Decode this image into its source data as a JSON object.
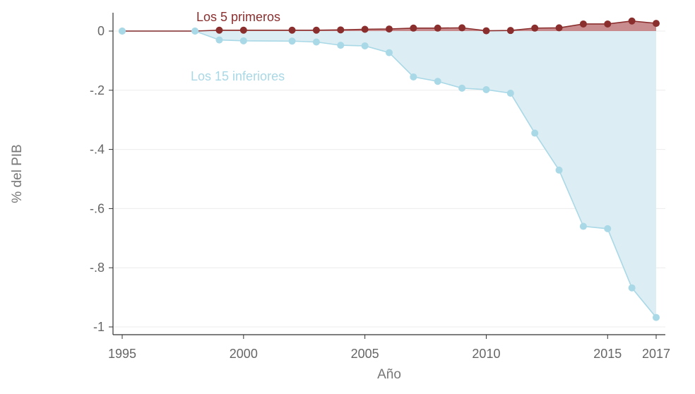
{
  "chart_data": {
    "type": "area",
    "xlabel": "Año",
    "ylabel": "% del PIB",
    "xlim": [
      1995,
      2017
    ],
    "ylim": [
      -1.02,
      0.05
    ],
    "x_ticks": [
      1995,
      2000,
      2005,
      2010,
      2015,
      2017
    ],
    "x_tick_labels": [
      "1995",
      "2000",
      "2005",
      "2010",
      "2015",
      "2017"
    ],
    "y_ticks": [
      0,
      -0.2,
      -0.4,
      -0.6,
      -0.8,
      -1
    ],
    "y_tick_labels": [
      "0",
      "-.2",
      "-.4",
      "-.6",
      "-.8",
      "-1"
    ],
    "grid": true,
    "series": [
      {
        "name": "Los 5 primeros",
        "color": "#8b2e2e",
        "fill": "#c0787a",
        "points": [
          [
            1995,
            0
          ],
          [
            1998,
            0
          ],
          [
            1999,
            0.003
          ],
          [
            2000,
            0.003
          ],
          [
            2002,
            0.003
          ],
          [
            2003,
            0.003
          ],
          [
            2004,
            0.004
          ],
          [
            2005,
            0.006
          ],
          [
            2006,
            0.007
          ],
          [
            2007,
            0.01
          ],
          [
            2008,
            0.01
          ],
          [
            2009,
            0.011
          ],
          [
            2010,
            0.001
          ],
          [
            2011,
            0.002
          ],
          [
            2012,
            0.01
          ],
          [
            2013,
            0.011
          ],
          [
            2014,
            0.024
          ],
          [
            2015,
            0.024
          ],
          [
            2016,
            0.034
          ],
          [
            2017,
            0.026
          ]
        ]
      },
      {
        "name": "Los 15 inferiores",
        "color": "#a9d8e6",
        "fill": "#dcedf4",
        "points": [
          [
            1995,
            0
          ],
          [
            1998,
            0
          ],
          [
            1999,
            -0.03
          ],
          [
            2000,
            -0.033
          ],
          [
            2002,
            -0.034
          ],
          [
            2003,
            -0.037
          ],
          [
            2004,
            -0.048
          ],
          [
            2005,
            -0.05
          ],
          [
            2006,
            -0.073
          ],
          [
            2007,
            -0.155
          ],
          [
            2008,
            -0.17
          ],
          [
            2009,
            -0.193
          ],
          [
            2010,
            -0.198
          ],
          [
            2011,
            -0.21
          ],
          [
            2012,
            -0.345
          ],
          [
            2013,
            -0.47
          ],
          [
            2014,
            -0.66
          ],
          [
            2015,
            -0.668
          ],
          [
            2016,
            -0.868
          ],
          [
            2017,
            -0.968
          ]
        ]
      }
    ]
  }
}
